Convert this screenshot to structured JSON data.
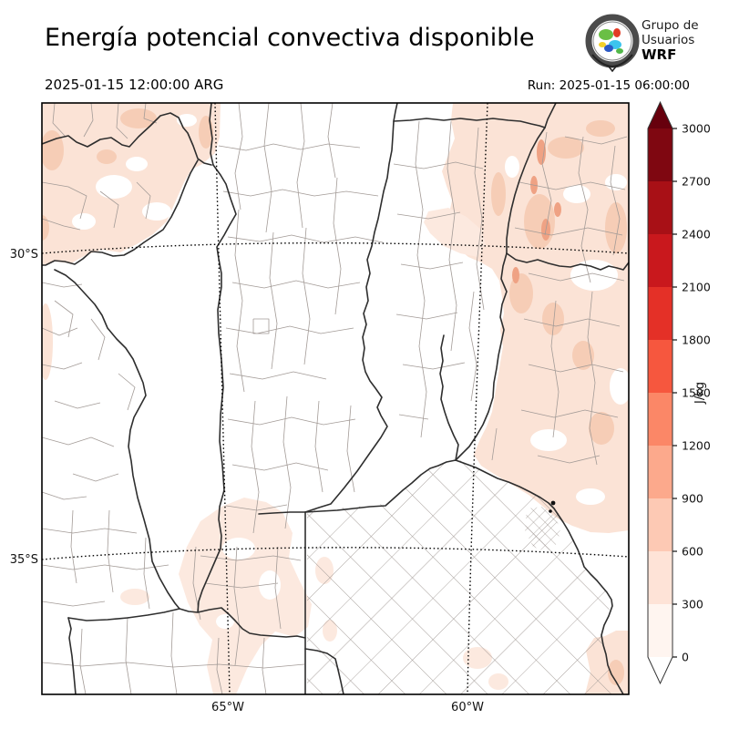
{
  "header": {
    "title": "Energía potencial convectiva disponible",
    "valid_time": "2025-01-15 12:00:00 ARG",
    "run": "Run: 2025-01-15 06:00:00"
  },
  "logo": {
    "line1": "Grupo de",
    "line2": "Usuarios",
    "line3": "WRF"
  },
  "map": {
    "lat_labels": [
      "30°S",
      "35°S"
    ],
    "lon_labels": [
      "65°W",
      "60°W"
    ]
  },
  "colorbar": {
    "unit": "J/kg",
    "tick_labels_top_to_bottom": [
      "3000",
      "2700",
      "2400",
      "2100",
      "1800",
      "1500",
      "1200",
      "900",
      "600",
      "300",
      "0"
    ],
    "segment_colors_top_to_bottom": [
      "#7f0711",
      "#a81016",
      "#c9181d",
      "#e43027",
      "#f6573e",
      "#fb8767",
      "#fca98c",
      "#fdc9b4",
      "#fee3d7",
      "#fff5f0"
    ],
    "over_color": "#67000d",
    "under_color": "#ffffff",
    "outline_color": "#333333"
  },
  "cape_shading_colors": {
    "pale": "#fbe3d6",
    "light": "#f6cdb6",
    "dark": "#efa284"
  }
}
